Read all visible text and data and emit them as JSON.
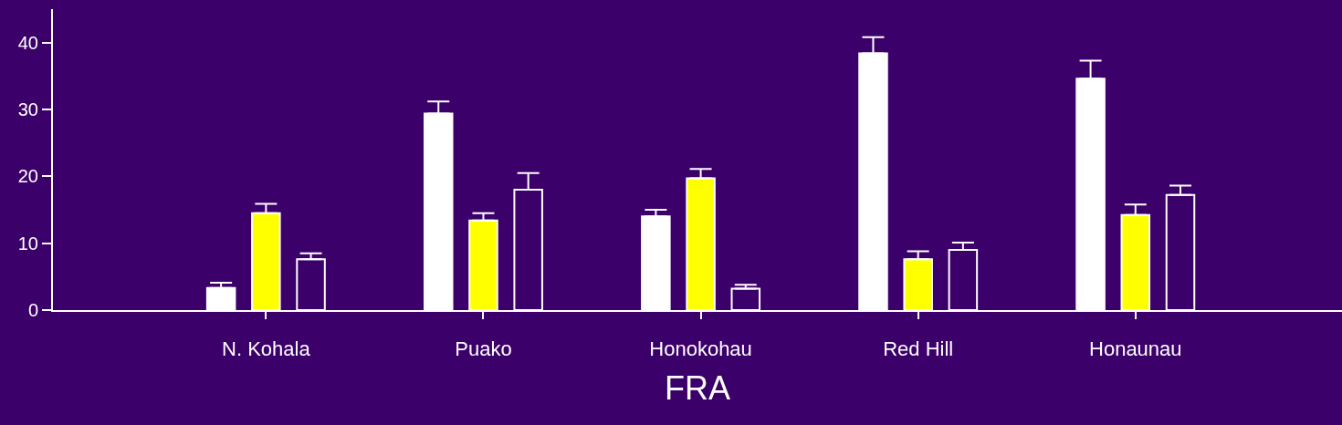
{
  "chart_data": {
    "type": "bar",
    "xlabel": "FRA",
    "categories": [
      "N. Kohala",
      "Puako",
      "Honokohau",
      "Red Hill",
      "Honaunau"
    ],
    "series": [
      {
        "color": "#ffffff",
        "values": [
          3.3,
          29.4,
          14.0,
          38.4,
          34.6
        ],
        "errors": [
          [
            3.3,
            4.1
          ],
          [
            29.4,
            31.2
          ],
          [
            14.0,
            15.0
          ],
          [
            38.4,
            40.8
          ],
          [
            34.6,
            37.3
          ]
        ]
      },
      {
        "color": "#ffff00",
        "values": [
          14.5,
          13.4,
          19.7,
          7.6,
          14.2
        ],
        "errors": [
          [
            14.5,
            15.9
          ],
          [
            13.4,
            14.5
          ],
          [
            19.7,
            21.1
          ],
          [
            7.6,
            8.8
          ],
          [
            14.2,
            15.8
          ]
        ]
      },
      {
        "color": "#3c006a",
        "values": [
          7.6,
          18.0,
          3.2,
          9.0,
          17.2
        ],
        "errors": [
          [
            7.6,
            8.5
          ],
          [
            18.0,
            20.5
          ],
          [
            3.2,
            3.8
          ],
          [
            9.0,
            10.1
          ],
          [
            17.2,
            18.6
          ]
        ]
      }
    ],
    "ylim": [
      0,
      45
    ],
    "yticks": [
      0,
      10,
      20,
      30,
      40
    ]
  }
}
